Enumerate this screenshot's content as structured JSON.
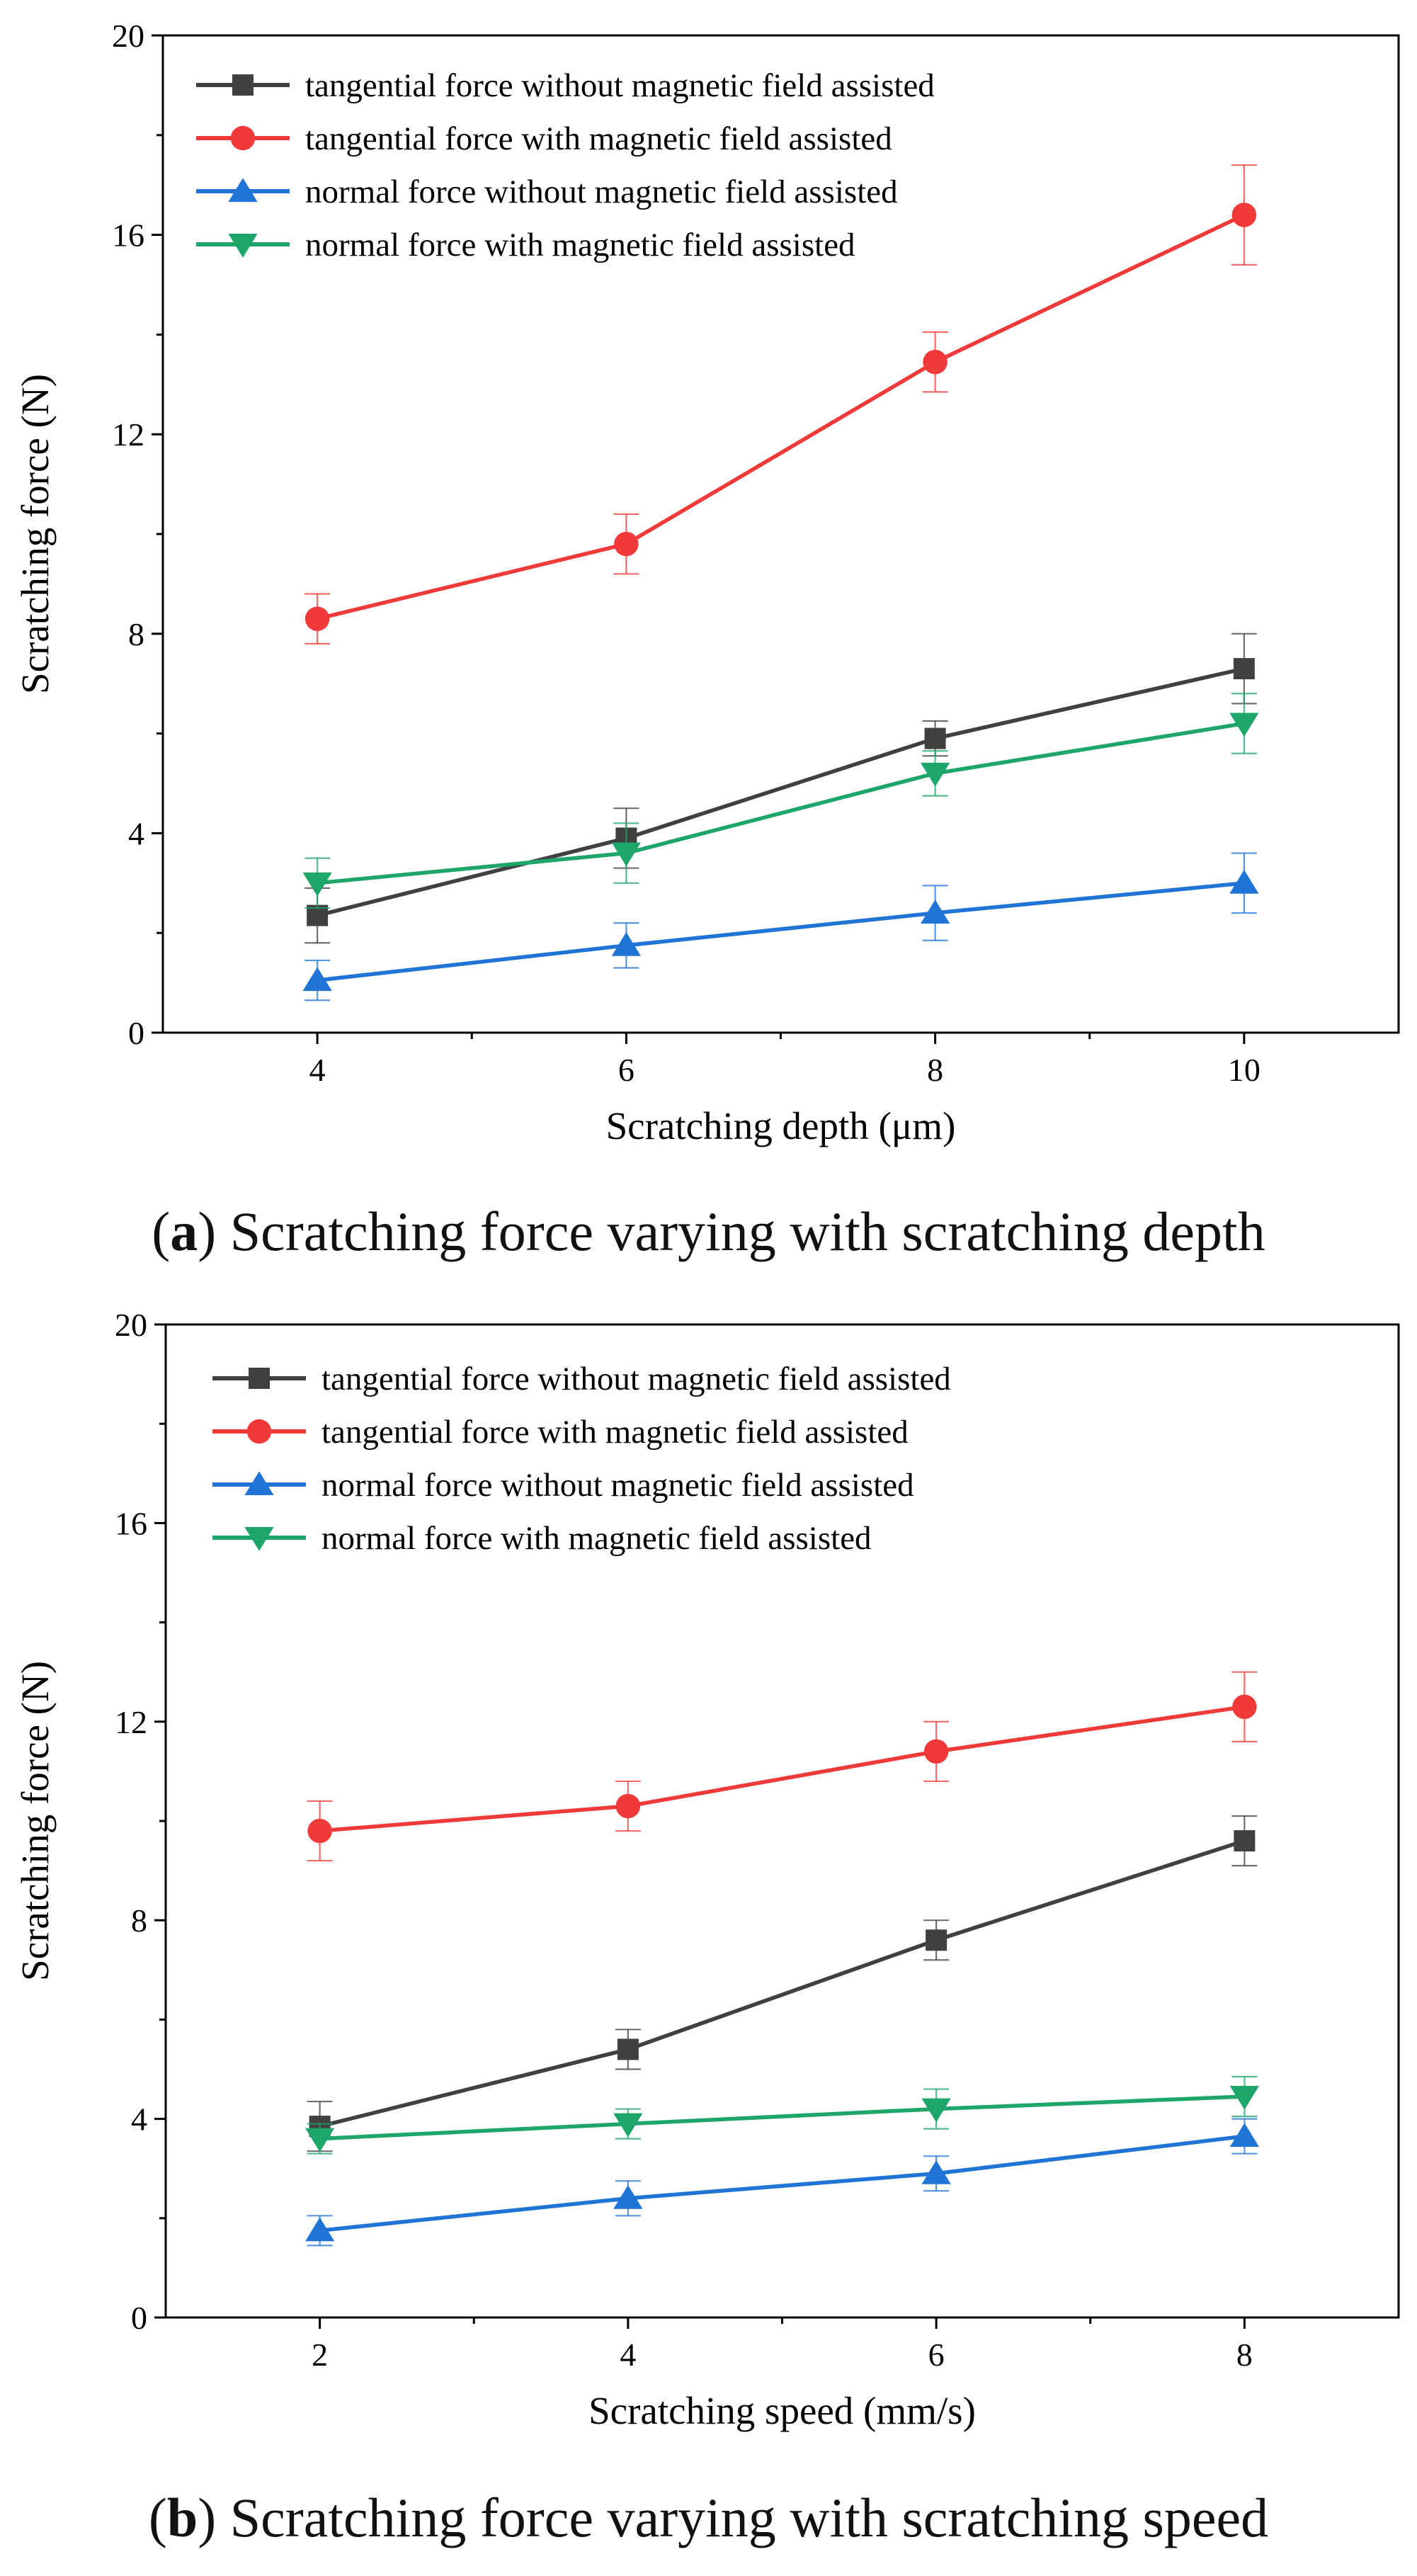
{
  "chart_data": [
    {
      "type": "line",
      "panel_letter": "a",
      "caption_text": "Scratching force varying with scratching depth",
      "xlabel": "Scratching depth (μm)",
      "ylabel": "Scratching force (N)",
      "x": [
        4,
        6,
        8,
        10
      ],
      "xticks": [
        4,
        6,
        8,
        10
      ],
      "xlim": [
        3,
        11
      ],
      "yticks": [
        0,
        4,
        8,
        12,
        16,
        20
      ],
      "ylim": [
        0,
        20
      ],
      "grid": false,
      "legend_position": "top-left",
      "series": [
        {
          "name": "tangential force without magnetic field assisted",
          "color": "#404040",
          "marker": "square",
          "values": [
            2.35,
            3.9,
            5.9,
            7.3
          ],
          "errors": [
            0.55,
            0.6,
            0.35,
            0.7
          ]
        },
        {
          "name": "tangential force with magnetic field assisted",
          "color": "#f03a3a",
          "marker": "circle",
          "values": [
            8.3,
            9.8,
            13.45,
            16.4
          ],
          "errors": [
            0.5,
            0.6,
            0.6,
            1.0
          ]
        },
        {
          "name": "normal force without magnetic field assisted",
          "color": "#1f74d6",
          "marker": "triangle-up",
          "values": [
            1.05,
            1.75,
            2.4,
            3.0
          ],
          "errors": [
            0.4,
            0.45,
            0.55,
            0.6
          ]
        },
        {
          "name": "normal force with magnetic field assisted",
          "color": "#1da56a",
          "marker": "triangle-down",
          "values": [
            3.0,
            3.6,
            5.2,
            6.2
          ],
          "errors": [
            0.5,
            0.6,
            0.45,
            0.6
          ]
        }
      ]
    },
    {
      "type": "line",
      "panel_letter": "b",
      "caption_text": "Scratching force varying with scratching speed",
      "xlabel": "Scratching speed (mm/s)",
      "ylabel": "Scratching force (N)",
      "x": [
        2,
        4,
        6,
        8
      ],
      "xticks": [
        2,
        4,
        6,
        8
      ],
      "xlim": [
        1,
        9
      ],
      "yticks": [
        0,
        4,
        8,
        12,
        16,
        20
      ],
      "ylim": [
        0,
        20
      ],
      "grid": false,
      "legend_position": "top-left",
      "series": [
        {
          "name": "tangential force without magnetic field assisted",
          "color": "#404040",
          "marker": "square",
          "values": [
            3.85,
            5.4,
            7.6,
            9.6
          ],
          "errors": [
            0.5,
            0.4,
            0.4,
            0.5
          ]
        },
        {
          "name": "tangential force with magnetic field assisted",
          "color": "#f03a3a",
          "marker": "circle",
          "values": [
            9.8,
            10.3,
            11.4,
            12.3
          ],
          "errors": [
            0.6,
            0.5,
            0.6,
            0.7
          ]
        },
        {
          "name": "normal force without magnetic field assisted",
          "color": "#1f74d6",
          "marker": "triangle-up",
          "values": [
            1.75,
            2.4,
            2.9,
            3.65
          ],
          "errors": [
            0.3,
            0.35,
            0.35,
            0.35
          ]
        },
        {
          "name": "normal force with magnetic field assisted",
          "color": "#1da56a",
          "marker": "triangle-down",
          "values": [
            3.6,
            3.9,
            4.2,
            4.45
          ],
          "errors": [
            0.3,
            0.3,
            0.4,
            0.4
          ]
        }
      ]
    }
  ]
}
